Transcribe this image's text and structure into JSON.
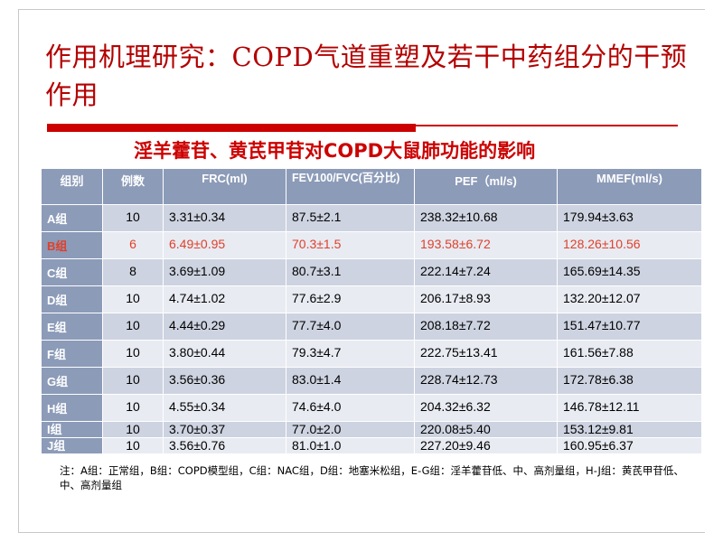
{
  "slide": {
    "title": "作用机理研究：COPD气道重塑及若干中药组分的干预作用",
    "subtitle": "淫羊藿苷、黄芪甲苷对COPD大鼠肺功能的影响",
    "note": "注：A组：正常组，B组：COPD模型组，C组：NAC组，D组：地塞米松组，E-G组：淫羊藿苷低、中、高剂量组，H-J组：黄芪甲苷低、中、高剂量组",
    "accent_color": "#cc0000",
    "highlight_color": "#e0402a",
    "header_bg": "#8c9bb8"
  },
  "table": {
    "headers": [
      "组别",
      "例数",
      "FRC(ml)",
      "FEV100/FVC(百分比)",
      "PEF（ml/s)",
      "MMEF(ml/s)"
    ],
    "rows": [
      [
        "A组",
        "10",
        "3.31±0.34",
        "87.5±2.1",
        "238.32±10.68",
        "179.94±3.63"
      ],
      [
        "B组",
        "6",
        "6.49±0.95",
        "70.3±1.5",
        "193.58±6.72",
        "128.26±10.56"
      ],
      [
        "C组",
        "8",
        "3.69±1.09",
        "80.7±3.1",
        "222.14±7.24",
        "165.69±14.35"
      ],
      [
        "D组",
        "10",
        "4.74±1.02",
        "77.6±2.9",
        "206.17±8.93",
        "132.20±12.07"
      ],
      [
        "E组",
        "10",
        "4.44±0.29",
        "77.7±4.0",
        "208.18±7.72",
        "151.47±10.77"
      ],
      [
        "F组",
        "10",
        "3.80±0.44",
        "79.3±4.7",
        "222.75±13.41",
        "161.56±7.88"
      ],
      [
        "G组",
        "10",
        "3.56±0.36",
        "83.0±1.4",
        "228.74±12.73",
        "172.78±6.38"
      ],
      [
        "H组",
        "10",
        "4.55±0.34",
        "74.6±4.0",
        "204.32±6.32",
        "146.78±12.11"
      ],
      [
        "I组",
        "10",
        "3.70±0.37",
        "77.0±2.0",
        "220.08±5.40",
        "153.12±9.81"
      ],
      [
        "J组",
        "10",
        "3.56±0.76",
        "81.0±1.0",
        "227.20±9.46",
        "160.95±6.37"
      ]
    ],
    "highlighted_row": "B组"
  }
}
